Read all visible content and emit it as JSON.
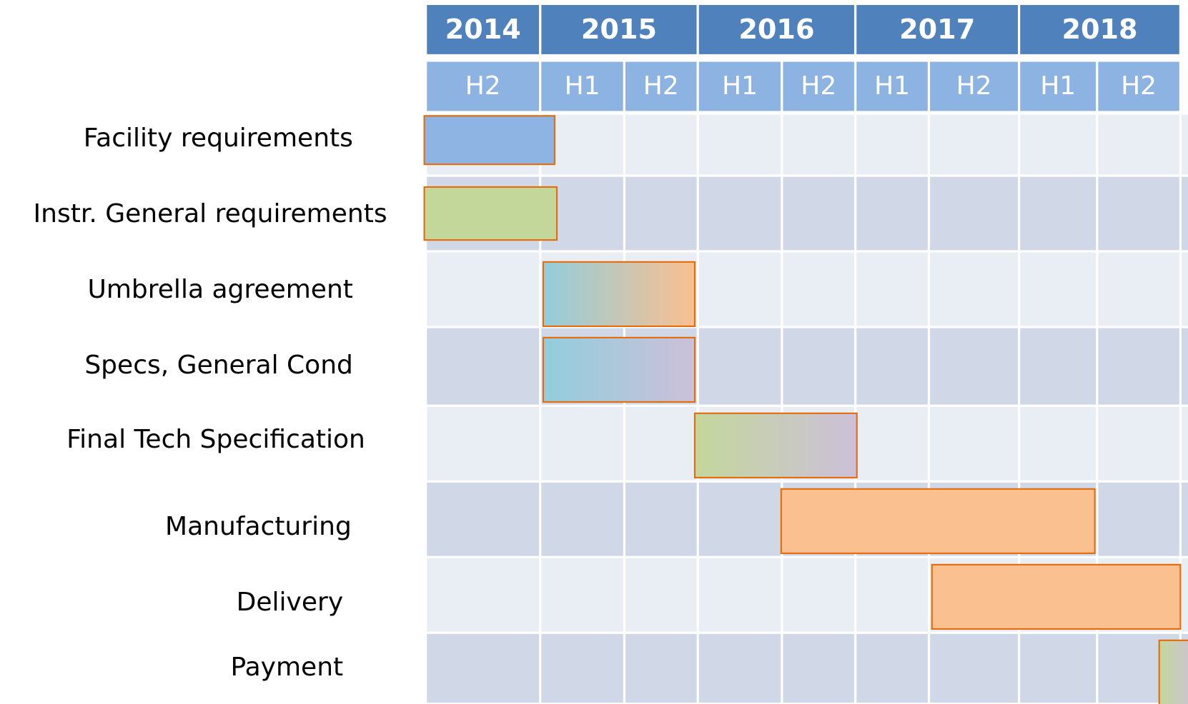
{
  "years": [
    "2014",
    "2015",
    "2016",
    "2017",
    "2018"
  ],
  "halves": [
    "H2",
    "H1",
    "H2",
    "H1",
    "H2",
    "H1",
    "H2",
    "H1",
    "H2"
  ],
  "tasks": [
    "Facility requirements",
    "Instr. General requirements",
    "Umbrella agreement",
    "Specs, General Cond",
    "Final Tech Specification",
    "Manufacturing",
    "Delivery",
    "Payment"
  ]
}
